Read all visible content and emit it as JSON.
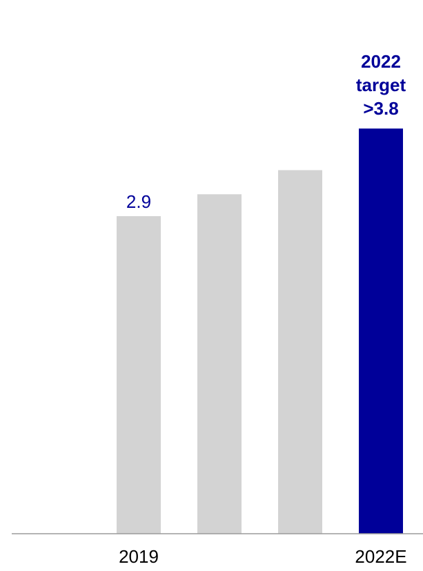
{
  "chart_data": {
    "type": "bar",
    "categories": [
      "2019",
      "",
      "",
      "2022E"
    ],
    "values": [
      2.9,
      3.1,
      3.32,
      3.7
    ],
    "data_labels": [
      "2.9",
      "",
      "",
      ""
    ],
    "target_label_lines": [
      "2022",
      "target",
      ">3.8"
    ],
    "title": "",
    "xlabel": "",
    "ylabel": "",
    "ylim": [
      0,
      4.2
    ],
    "grid": false,
    "legend": "none",
    "colors": {
      "bar": "#d3d3d3",
      "highlight": "#000099",
      "label": "#000099",
      "axis": "#9a9a9a"
    }
  }
}
